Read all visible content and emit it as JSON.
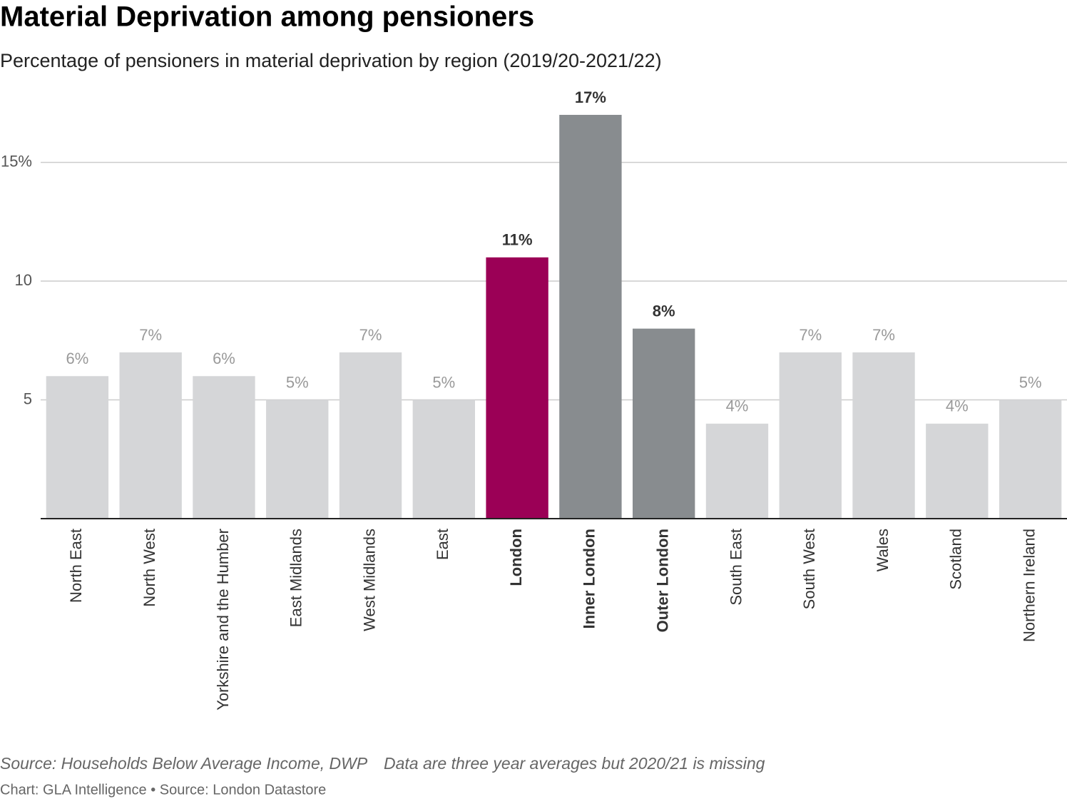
{
  "chart_data": {
    "type": "bar",
    "title": "Material Deprivation among pensioners",
    "subtitle": "Percentage of pensioners in material deprivation by region (2019/20-2021/22)",
    "categories": [
      "North East",
      "North West",
      "Yorkshire and the Humber",
      "East Midlands",
      "West Midlands",
      "East",
      "London",
      "Inner London",
      "Outer London",
      "South East",
      "South West",
      "Wales",
      "Scotland",
      "Northern Ireland"
    ],
    "values": [
      6,
      7,
      6,
      5,
      7,
      5,
      11,
      17,
      8,
      4,
      7,
      7,
      4,
      5
    ],
    "value_labels": [
      "6%",
      "7%",
      "6%",
      "5%",
      "7%",
      "5%",
      "11%",
      "17%",
      "8%",
      "4%",
      "7%",
      "7%",
      "4%",
      "5%"
    ],
    "color": "#d5d6d8",
    "colors": [
      "#d5d6d8",
      "#d5d6d8",
      "#d5d6d8",
      "#d5d6d8",
      "#d5d6d8",
      "#d5d6d8",
      "#9b0056",
      "#888c8f",
      "#888c8f",
      "#d5d6d8",
      "#d5d6d8",
      "#d5d6d8",
      "#d5d6d8",
      "#d5d6d8"
    ],
    "ylim": [
      0,
      17
    ],
    "yticks": [
      5,
      10,
      {
        "value": 15,
        "label": "15%"
      }
    ],
    "grid": true,
    "notes": [
      "Source: Households Below Average Income, DWP",
      "Data are three year averages but 2020/21 is missing"
    ],
    "credit": "Chart: GLA Intelligence • Source: London Datastore"
  }
}
